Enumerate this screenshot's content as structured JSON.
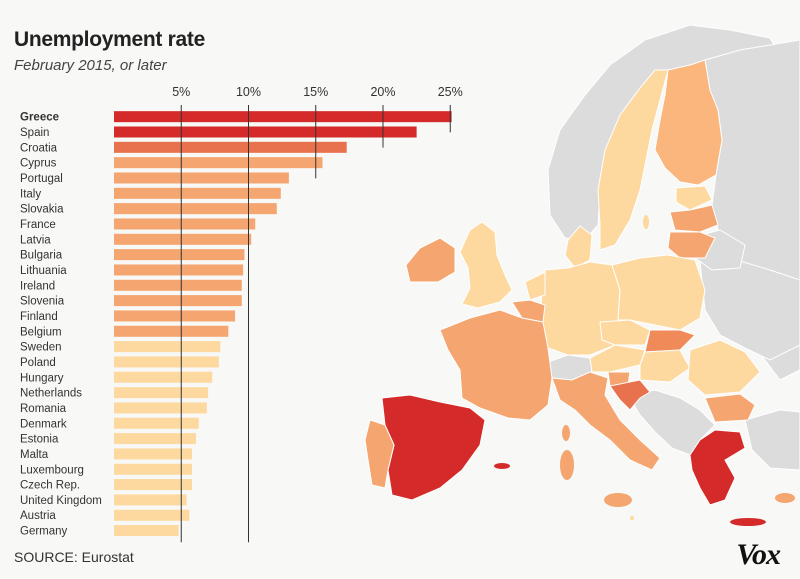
{
  "title": "Unemployment rate",
  "subtitle": "February 2015, or later",
  "source": "SOURCE: Eurostat",
  "logo": "Vox",
  "colors": {
    "highest": "#d42a2a",
    "high": "#e8714e",
    "mid": "#f4a570",
    "low": "#fdd89f",
    "nonEU": "#dcdcdc",
    "gridline": "#333333"
  },
  "chart_data": {
    "type": "bar",
    "orientation": "horizontal",
    "title": "Unemployment rate",
    "subtitle": "February 2015, or later",
    "xlabel": "",
    "ylabel": "",
    "xlim": [
      0,
      26.5
    ],
    "ticks": [
      "5%",
      "10%",
      "15%",
      "20%",
      "25%"
    ],
    "tick_values": [
      5,
      10,
      15,
      20,
      25
    ],
    "grid": true,
    "bold_category": "Greece",
    "categories": [
      "Greece",
      "Spain",
      "Croatia",
      "Cyprus",
      "Portugal",
      "Italy",
      "Slovakia",
      "France",
      "Latvia",
      "Bulgaria",
      "Lithuania",
      "Ireland",
      "Slovenia",
      "Finland",
      "Belgium",
      "Sweden",
      "Poland",
      "Hungary",
      "Netherlands",
      "Romania",
      "Denmark",
      "Estonia",
      "Malta",
      "Luxembourg",
      "Czech Rep.",
      "United Kingdom",
      "Austria",
      "Germany"
    ],
    "values": [
      25.1,
      22.5,
      17.3,
      15.5,
      13.0,
      12.4,
      12.1,
      10.5,
      10.2,
      9.7,
      9.6,
      9.5,
      9.5,
      9.0,
      8.5,
      7.9,
      7.8,
      7.3,
      7.0,
      6.9,
      6.3,
      6.1,
      5.8,
      5.8,
      5.8,
      5.4,
      5.6,
      4.8
    ],
    "bar_colors": [
      "#d42a2a",
      "#d42a2a",
      "#e8714e",
      "#f4a570",
      "#f4a570",
      "#f4a570",
      "#f4a570",
      "#f4a570",
      "#f4a570",
      "#f4a570",
      "#f4a570",
      "#f4a570",
      "#f4a570",
      "#f4a570",
      "#f4a570",
      "#fdd89f",
      "#fdd89f",
      "#fdd89f",
      "#fdd89f",
      "#fdd89f",
      "#fdd89f",
      "#fdd89f",
      "#fdd89f",
      "#fdd89f",
      "#fdd89f",
      "#fdd89f",
      "#fdd89f",
      "#fdd89f"
    ]
  }
}
